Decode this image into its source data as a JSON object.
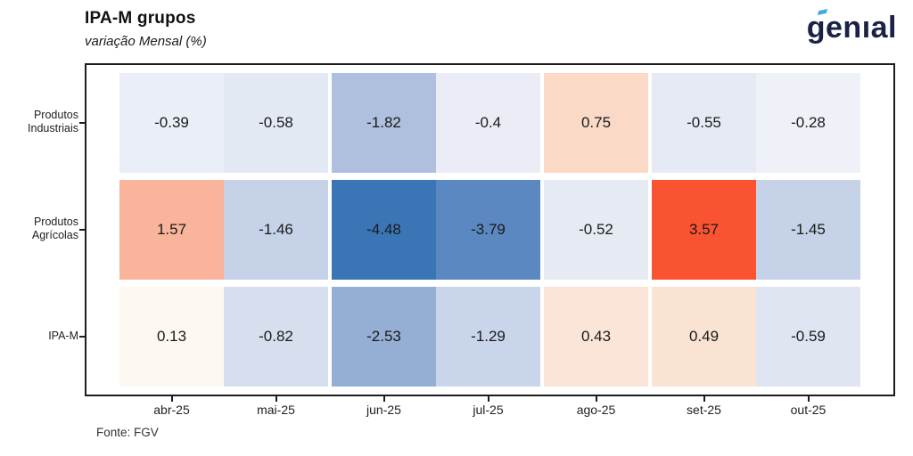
{
  "header": {
    "title": "IPA-M grupos",
    "subtitle": "variação Mensal (%)",
    "logo_text": "genıal"
  },
  "footer": {
    "source": "Fonte: FGV"
  },
  "colors": {
    "logo_navy": "#1b2245",
    "logo_accent": "#3fa9e0",
    "frame": "#1c1c1c",
    "cell_text": "#1a1a1a",
    "axis_text": "#212121"
  },
  "chart_data": {
    "type": "heatmap",
    "title": "IPA-M grupos",
    "subtitle": "variação Mensal (%)",
    "source": "Fonte: FGV",
    "x_categories": [
      "abr-25",
      "mai-25",
      "jun-25",
      "jul-25",
      "ago-25",
      "set-25",
      "out-25"
    ],
    "y_categories": [
      "Produtos Industriais",
      "Produtos Agrícolas",
      "IPA-M"
    ],
    "y_category_lines": [
      [
        "Produtos",
        "Industriais"
      ],
      [
        "Produtos",
        "Agrícolas"
      ],
      [
        "IPA-M"
      ]
    ],
    "values": [
      [
        -0.39,
        -0.58,
        -1.82,
        -0.4,
        0.75,
        -0.55,
        -0.28
      ],
      [
        1.57,
        -1.46,
        -4.48,
        -3.79,
        -0.52,
        3.57,
        -1.45
      ],
      [
        0.13,
        -0.82,
        -2.53,
        -1.29,
        0.43,
        0.49,
        -0.59
      ]
    ],
    "cell_colors": [
      [
        "#eaeef7",
        "#e3e9f3",
        "#aec0de",
        "#eaedf6",
        "#fad9c7",
        "#e5eaf4",
        "#eef1f8"
      ],
      [
        "#fab49c",
        "#c5d2e8",
        "#3a76b5",
        "#5b88c1",
        "#e6eaf3",
        "#fa5331",
        "#c5d2e8"
      ],
      [
        "#fef8f3",
        "#d6dfee",
        "#94aed4",
        "#c8d5ea",
        "#fbe4d8",
        "#fbe3d4",
        "#dfe5f1"
      ]
    ],
    "colormap": "diverging blue (negative) to white to red (positive)",
    "value_range": [
      -4.48,
      3.57
    ],
    "grid": false,
    "legend": "none"
  }
}
